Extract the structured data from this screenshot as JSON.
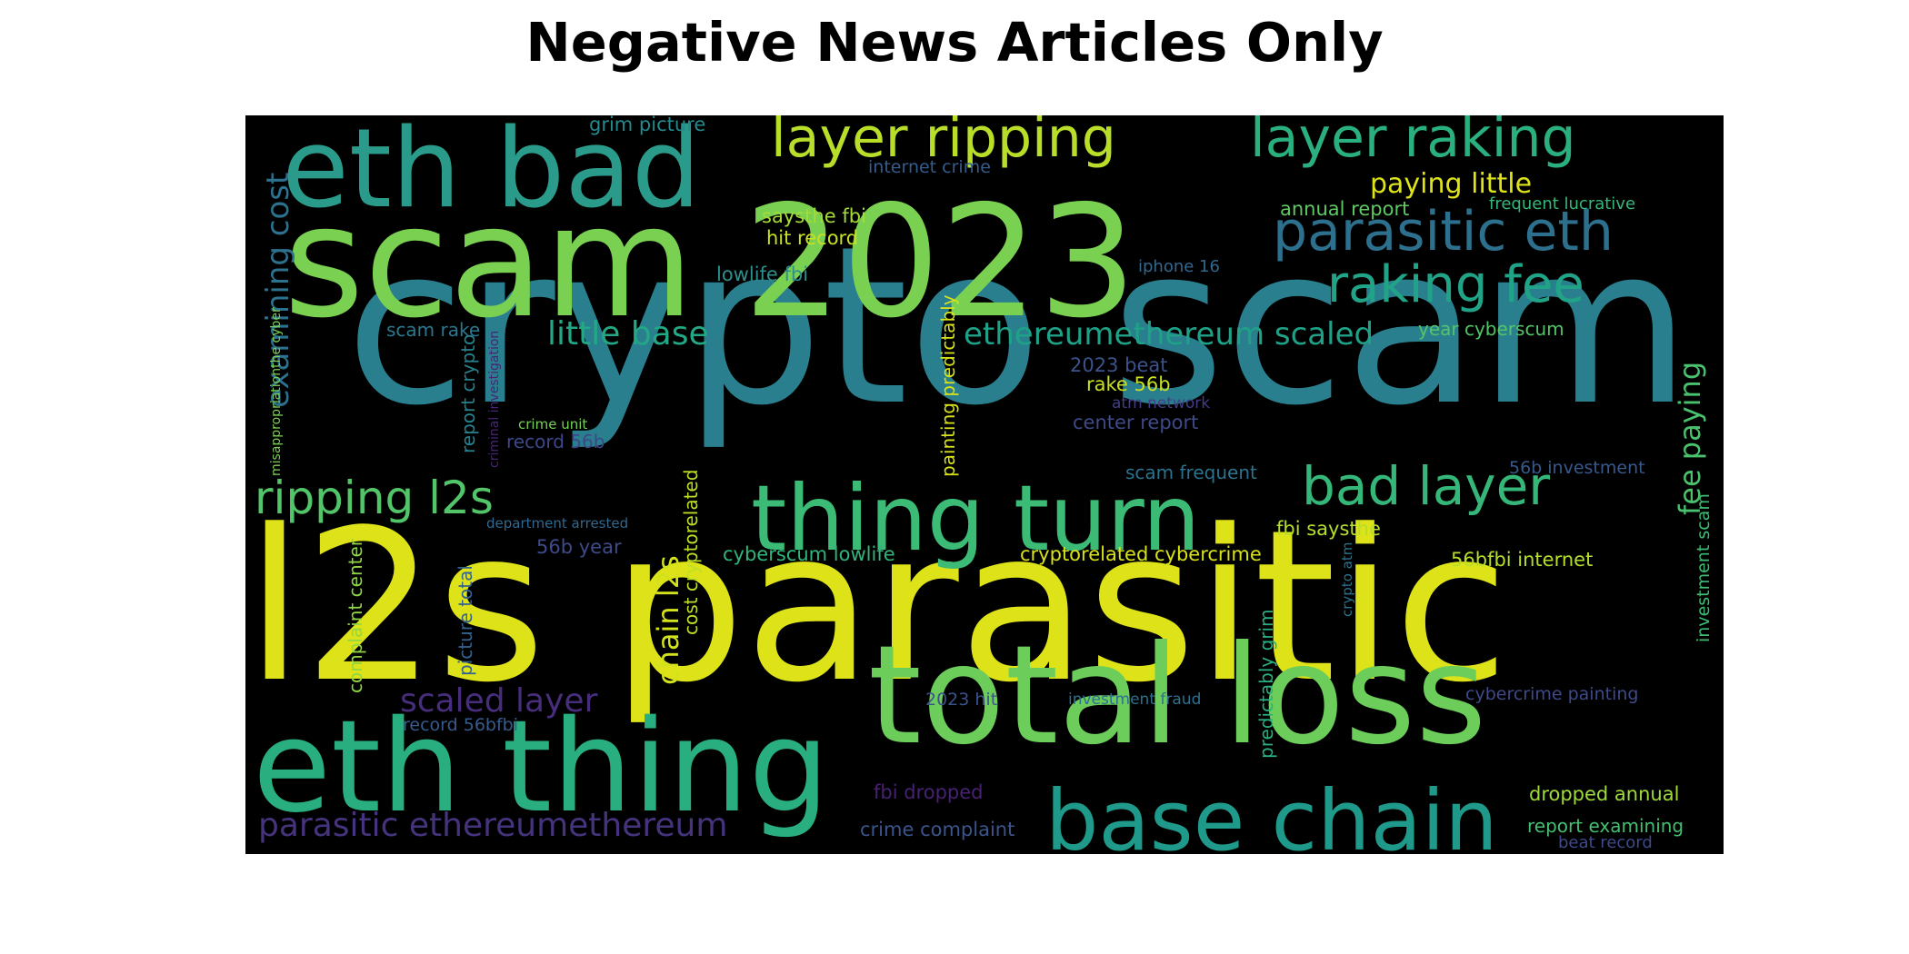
{
  "title": "Negative News Articles Only",
  "chart_data": {
    "type": "wordcloud",
    "title": "Negative News Articles Only",
    "background": "#000000",
    "colormap": "viridis",
    "words": [
      {
        "text": "crypto scam",
        "weight": 1.0,
        "color": "#2a7f8e",
        "orientation": "horizontal"
      },
      {
        "text": "l2s parasitic",
        "weight": 0.96,
        "color": "#dde318",
        "orientation": "horizontal"
      },
      {
        "text": "scam 2023",
        "weight": 0.86,
        "color": "#7ad151",
        "orientation": "horizontal"
      },
      {
        "text": "total loss",
        "weight": 0.74,
        "color": "#6ccd5a",
        "orientation": "horizontal"
      },
      {
        "text": "eth thing",
        "weight": 0.68,
        "color": "#29af7f",
        "orientation": "horizontal"
      },
      {
        "text": "eth bad",
        "weight": 0.62,
        "color": "#2a9a8a",
        "orientation": "horizontal"
      },
      {
        "text": "thing turn",
        "weight": 0.52,
        "color": "#3bbb75",
        "orientation": "horizontal"
      },
      {
        "text": "base chain",
        "weight": 0.48,
        "color": "#1f9a8a",
        "orientation": "horizontal"
      },
      {
        "text": "layer ripping",
        "weight": 0.36,
        "color": "#b8de29",
        "orientation": "horizontal"
      },
      {
        "text": "layer raking",
        "weight": 0.36,
        "color": "#2ab07f",
        "orientation": "horizontal"
      },
      {
        "text": "parasitic eth",
        "weight": 0.34,
        "color": "#2d708e",
        "orientation": "horizontal"
      },
      {
        "text": "bad layer",
        "weight": 0.34,
        "color": "#35b779",
        "orientation": "horizontal"
      },
      {
        "text": "raking fee",
        "weight": 0.32,
        "color": "#20a386",
        "orientation": "horizontal"
      },
      {
        "text": "ripping l2s",
        "weight": 0.32,
        "color": "#52c569",
        "orientation": "horizontal"
      },
      {
        "text": "little base",
        "weight": 0.24,
        "color": "#22a884",
        "orientation": "horizontal"
      },
      {
        "text": "ethereumethereum scaled",
        "weight": 0.24,
        "color": "#1fa187",
        "orientation": "horizontal"
      },
      {
        "text": "parasitic ethereumethereum",
        "weight": 0.24,
        "color": "#46337e",
        "orientation": "horizontal"
      },
      {
        "text": "scaled layer",
        "weight": 0.24,
        "color": "#472d7b",
        "orientation": "horizontal"
      },
      {
        "text": "examining cost",
        "weight": 0.24,
        "color": "#2c728e",
        "orientation": "vertical"
      },
      {
        "text": "fee paying",
        "weight": 0.24,
        "color": "#4ac16d",
        "orientation": "vertical"
      },
      {
        "text": "chain l2s",
        "weight": 0.24,
        "color": "#d2e21b",
        "orientation": "vertical"
      },
      {
        "text": "paying little",
        "weight": 0.2,
        "color": "#dde318",
        "orientation": "horizontal"
      },
      {
        "text": "annual report",
        "weight": 0.13,
        "color": "#5ec962",
        "orientation": "horizontal"
      },
      {
        "text": "frequent lucrative",
        "weight": 0.11,
        "color": "#35b779",
        "orientation": "horizontal"
      },
      {
        "text": "grim picture",
        "weight": 0.13,
        "color": "#238a8d",
        "orientation": "horizontal"
      },
      {
        "text": "internet crime",
        "weight": 0.12,
        "color": "#365c8d",
        "orientation": "horizontal"
      },
      {
        "text": "saysthe fbi",
        "weight": 0.13,
        "color": "#a5db36",
        "orientation": "horizontal"
      },
      {
        "text": "hit record",
        "weight": 0.13,
        "color": "#c8e020",
        "orientation": "horizontal"
      },
      {
        "text": "lowlife fbi",
        "weight": 0.13,
        "color": "#2c8f8c",
        "orientation": "horizontal"
      },
      {
        "text": "iphone 16",
        "weight": 0.11,
        "color": "#31688e",
        "orientation": "horizontal"
      },
      {
        "text": "year cyberscum",
        "weight": 0.13,
        "color": "#52c569",
        "orientation": "horizontal"
      },
      {
        "text": "scam rake",
        "weight": 0.12,
        "color": "#2a788e",
        "orientation": "horizontal"
      },
      {
        "text": "2023 beat",
        "weight": 0.13,
        "color": "#3b528b",
        "orientation": "horizontal"
      },
      {
        "text": "rake 56b",
        "weight": 0.13,
        "color": "#c8e020",
        "orientation": "horizontal"
      },
      {
        "text": "atm network",
        "weight": 0.1,
        "color": "#433e85",
        "orientation": "horizontal"
      },
      {
        "text": "center report",
        "weight": 0.13,
        "color": "#3e4a89",
        "orientation": "horizontal"
      },
      {
        "text": "crime unit",
        "weight": 0.08,
        "color": "#75d054",
        "orientation": "horizontal"
      },
      {
        "text": "record 56b",
        "weight": 0.12,
        "color": "#3f4788",
        "orientation": "horizontal"
      },
      {
        "text": "scam frequent",
        "weight": 0.12,
        "color": "#2c728e",
        "orientation": "horizontal"
      },
      {
        "text": "56b investment",
        "weight": 0.12,
        "color": "#38598c",
        "orientation": "horizontal"
      },
      {
        "text": "department arrested",
        "weight": 0.08,
        "color": "#31688e",
        "orientation": "horizontal"
      },
      {
        "text": "fbi saysthe",
        "weight": 0.13,
        "color": "#b5de2b",
        "orientation": "horizontal"
      },
      {
        "text": "56b year",
        "weight": 0.13,
        "color": "#3e4a89",
        "orientation": "horizontal"
      },
      {
        "text": "cyberscum lowlife",
        "weight": 0.13,
        "color": "#31b57b",
        "orientation": "horizontal"
      },
      {
        "text": "cryptorelated cybercrime",
        "weight": 0.13,
        "color": "#d8e219",
        "orientation": "horizontal"
      },
      {
        "text": "56bfbi internet",
        "weight": 0.13,
        "color": "#b5de2b",
        "orientation": "horizontal"
      },
      {
        "text": "2023 hit",
        "weight": 0.11,
        "color": "#3b528b",
        "orientation": "horizontal"
      },
      {
        "text": "investment fraud",
        "weight": 0.1,
        "color": "#2d708e",
        "orientation": "horizontal"
      },
      {
        "text": "cybercrime painting",
        "weight": 0.11,
        "color": "#3e4a89",
        "orientation": "horizontal"
      },
      {
        "text": "record 56bfbi",
        "weight": 0.11,
        "color": "#365c8d",
        "orientation": "horizontal"
      },
      {
        "text": "fbi dropped",
        "weight": 0.13,
        "color": "#482173",
        "orientation": "horizontal"
      },
      {
        "text": "dropped annual",
        "weight": 0.13,
        "color": "#a0da39",
        "orientation": "horizontal"
      },
      {
        "text": "crime complaint",
        "weight": 0.12,
        "color": "#3a548c",
        "orientation": "horizontal"
      },
      {
        "text": "report examining",
        "weight": 0.13,
        "color": "#44bf70",
        "orientation": "horizontal"
      },
      {
        "text": "beat record",
        "weight": 0.11,
        "color": "#3e4a89",
        "orientation": "horizontal"
      },
      {
        "text": "report crypto",
        "weight": 0.12,
        "color": "#26828e",
        "orientation": "vertical"
      },
      {
        "text": "picture total",
        "weight": 0.12,
        "color": "#33638d",
        "orientation": "vertical"
      },
      {
        "text": "cost cryptorelated",
        "weight": 0.12,
        "color": "#bddf26",
        "orientation": "vertical"
      },
      {
        "text": "painting predictably",
        "weight": 0.12,
        "color": "#d8e219",
        "orientation": "vertical"
      },
      {
        "text": "complaint center",
        "weight": 0.12,
        "color": "#8fd744",
        "orientation": "vertical"
      },
      {
        "text": "predictably grim",
        "weight": 0.12,
        "color": "#2ab07f",
        "orientation": "vertical"
      },
      {
        "text": "crypto atm",
        "weight": 0.09,
        "color": "#2c728e",
        "orientation": "vertical"
      },
      {
        "text": "investment scam",
        "weight": 0.12,
        "color": "#3dbc74",
        "orientation": "vertical"
      },
      {
        "text": "criminal investigation",
        "weight": 0.07,
        "color": "#482475",
        "orientation": "vertical"
      },
      {
        "text": "misappropriationthe cyber",
        "weight": 0.07,
        "color": "#7ad151",
        "orientation": "vertical"
      }
    ]
  }
}
